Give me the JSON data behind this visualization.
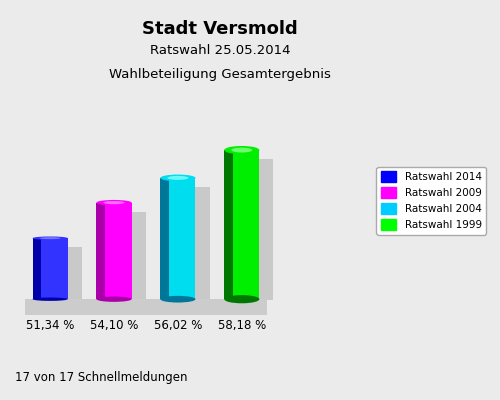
{
  "title_line1": "Stadt Versmold",
  "title_line2": "Ratswahl 25.05.2014",
  "title_line3": "Wahlbeteiligung Gesamtergebnis",
  "categories": [
    "Ratswahl 2014",
    "Ratswahl 2009",
    "Ratswahl 2004",
    "Ratswahl 1999"
  ],
  "values": [
    51.34,
    54.1,
    56.02,
    58.18
  ],
  "labels": [
    "51,34 %",
    "54,10 %",
    "56,02 %",
    "58,18 %"
  ],
  "bar_colors_main": [
    "#3333FF",
    "#FF00FF",
    "#00DDEE",
    "#00EE00"
  ],
  "bar_colors_dark": [
    "#0000AA",
    "#AA00AA",
    "#007799",
    "#007700"
  ],
  "bar_colors_light": [
    "#8888FF",
    "#FF88FF",
    "#88FFFF",
    "#88FF88"
  ],
  "shadow_color": "#BBBBBB",
  "background_color": "#EBEBEB",
  "floor_color": "#CCCCCC",
  "footnote": "17 von 17 Schnellmeldungen",
  "legend_labels": [
    "Ratswahl 2014",
    "Ratswahl 2009",
    "Ratswahl 2004",
    "Ratswahl 1999"
  ],
  "legend_colors": [
    "#0000FF",
    "#FF00FF",
    "#00CCFF",
    "#00FF00"
  ]
}
